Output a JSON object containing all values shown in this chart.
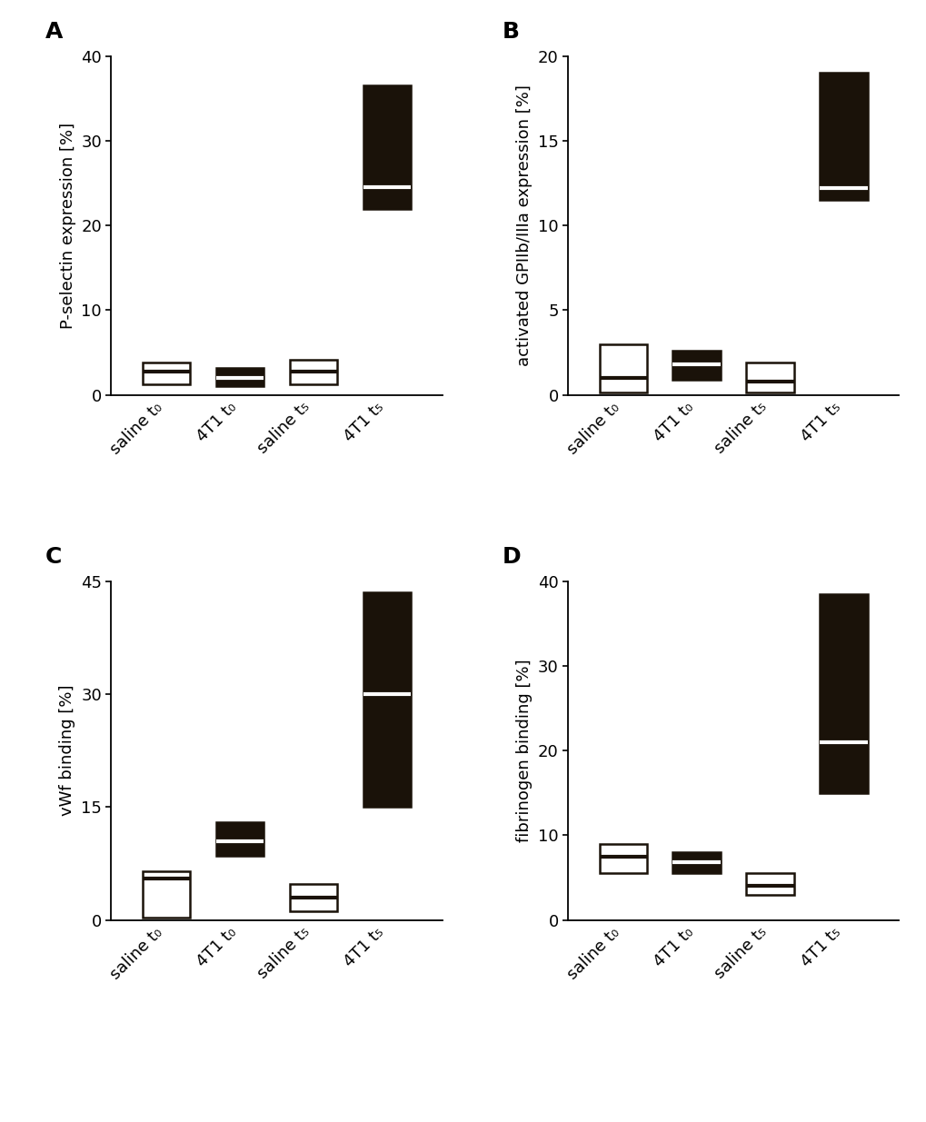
{
  "panels": [
    {
      "label": "A",
      "ylabel": "P-selectin expression [%]",
      "ylim": [
        0,
        40
      ],
      "yticks": [
        0,
        10,
        20,
        30,
        40
      ],
      "groups": [
        {
          "name": "saline t₀",
          "q1": 1.2,
          "median": 2.8,
          "q3": 3.8,
          "filled": false
        },
        {
          "name": "4T1 t₀",
          "q1": 1.0,
          "median": 2.0,
          "q3": 3.2,
          "filled": true
        },
        {
          "name": "saline t₅",
          "q1": 1.2,
          "median": 2.8,
          "q3": 4.2,
          "filled": false
        },
        {
          "name": "4T1 t₅",
          "q1": 22.0,
          "median": 24.5,
          "q3": 36.5,
          "filled": true
        }
      ]
    },
    {
      "label": "B",
      "ylabel": "activated GPIIb/IIIa expression [%]",
      "ylim": [
        0,
        20
      ],
      "yticks": [
        0,
        5,
        10,
        15,
        20
      ],
      "groups": [
        {
          "name": "saline t₀",
          "q1": 0.15,
          "median": 1.0,
          "q3": 3.0,
          "filled": false
        },
        {
          "name": "4T1 t₀",
          "q1": 0.9,
          "median": 1.8,
          "q3": 2.6,
          "filled": true
        },
        {
          "name": "saline t₅",
          "q1": 0.15,
          "median": 0.8,
          "q3": 1.9,
          "filled": false
        },
        {
          "name": "4T1 t₅",
          "q1": 11.5,
          "median": 12.2,
          "q3": 19.0,
          "filled": true
        }
      ]
    },
    {
      "label": "C",
      "ylabel": "vWf binding [%]",
      "ylim": [
        0,
        45
      ],
      "yticks": [
        0,
        15,
        30,
        45
      ],
      "groups": [
        {
          "name": "saline t₀",
          "q1": 0.3,
          "median": 5.5,
          "q3": 6.5,
          "filled": false
        },
        {
          "name": "4T1 t₀",
          "q1": 8.5,
          "median": 10.5,
          "q3": 13.0,
          "filled": true
        },
        {
          "name": "saline t₅",
          "q1": 1.2,
          "median": 3.0,
          "q3": 4.8,
          "filled": false
        },
        {
          "name": "4T1 t₅",
          "q1": 15.0,
          "median": 30.0,
          "q3": 43.5,
          "filled": true
        }
      ]
    },
    {
      "label": "D",
      "ylabel": "fibrinogen binding [%]",
      "ylim": [
        0,
        40
      ],
      "yticks": [
        0,
        10,
        20,
        30,
        40
      ],
      "groups": [
        {
          "name": "saline t₀",
          "q1": 5.5,
          "median": 7.5,
          "q3": 9.0,
          "filled": false
        },
        {
          "name": "4T1 t₀",
          "q1": 5.5,
          "median": 6.8,
          "q3": 8.0,
          "filled": true
        },
        {
          "name": "saline t₅",
          "q1": 3.0,
          "median": 4.0,
          "q3": 5.5,
          "filled": false
        },
        {
          "name": "4T1 t₅",
          "q1": 15.0,
          "median": 21.0,
          "q3": 38.5,
          "filled": true
        }
      ]
    }
  ],
  "box_width": 0.65,
  "filled_color": "#1a1209",
  "empty_facecolor": "#ffffff",
  "edge_color": "#1a1209",
  "median_color_filled": "#ffffff",
  "median_color_empty": "#1a1209",
  "linewidth": 1.8,
  "median_linewidth": 3.0,
  "label_fontsize": 18,
  "tick_fontsize": 13,
  "axis_label_fontsize": 13
}
